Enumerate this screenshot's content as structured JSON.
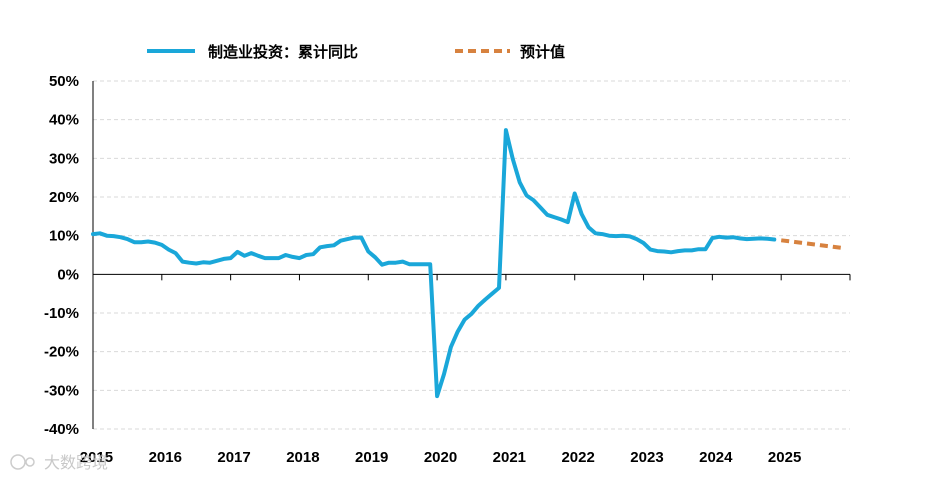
{
  "chart_data": {
    "type": "line",
    "title": "",
    "xlabel": "",
    "ylabel": "",
    "ylim": [
      -40,
      50
    ],
    "yticks": [
      -40,
      -30,
      -20,
      -10,
      0,
      10,
      20,
      30,
      40,
      50
    ],
    "ytick_labels": [
      "-40%",
      "-30%",
      "-20%",
      "-10%",
      "0%",
      "10%",
      "20%",
      "30%",
      "40%",
      "50%"
    ],
    "xlim": [
      2015.0,
      2026.0
    ],
    "xtick_labels": [
      "2015",
      "2016",
      "2017",
      "2018",
      "2019",
      "2020",
      "2021",
      "2022",
      "2023",
      "2024",
      "2025"
    ],
    "xtick_values": [
      2015,
      2016,
      2017,
      2018,
      2019,
      2020,
      2021,
      2022,
      2023,
      2024,
      2025
    ],
    "legend_position": "top",
    "grid": true,
    "series": [
      {
        "name": "制造业投资：累计同比",
        "style": "solid",
        "color": "#1aa7d9",
        "x": [
          2015.0,
          2015.1,
          2015.2,
          2015.3,
          2015.4,
          2015.5,
          2015.6,
          2015.7,
          2015.8,
          2015.9,
          2016.0,
          2016.1,
          2016.2,
          2016.3,
          2016.4,
          2016.5,
          2016.6,
          2016.7,
          2016.8,
          2016.9,
          2017.0,
          2017.1,
          2017.2,
          2017.3,
          2017.4,
          2017.5,
          2017.6,
          2017.7,
          2017.8,
          2017.9,
          2018.0,
          2018.1,
          2018.2,
          2018.3,
          2018.4,
          2018.5,
          2018.6,
          2018.7,
          2018.8,
          2018.9,
          2019.0,
          2019.1,
          2019.2,
          2019.3,
          2019.4,
          2019.5,
          2019.6,
          2019.7,
          2019.8,
          2019.9,
          2020.0,
          2020.1,
          2020.2,
          2020.3,
          2020.4,
          2020.5,
          2020.6,
          2020.7,
          2020.8,
          2020.9,
          2021.0,
          2021.1,
          2021.2,
          2021.3,
          2021.4,
          2021.5,
          2021.6,
          2021.7,
          2021.8,
          2021.9,
          2022.0,
          2022.1,
          2022.2,
          2022.3,
          2022.4,
          2022.5,
          2022.6,
          2022.7,
          2022.8,
          2022.9,
          2023.0,
          2023.1,
          2023.2,
          2023.3,
          2023.4,
          2023.5,
          2023.6,
          2023.7,
          2023.8,
          2023.9,
          2024.0,
          2024.1,
          2024.2,
          2024.3,
          2024.4,
          2024.5,
          2024.6,
          2024.7,
          2024.8,
          2024.9
        ],
        "values": [
          10.4,
          10.6,
          10.0,
          9.9,
          9.6,
          9.1,
          8.3,
          8.3,
          8.5,
          8.2,
          7.6,
          6.4,
          5.5,
          3.3,
          3.0,
          2.8,
          3.1,
          3.0,
          3.5,
          4.0,
          4.2,
          5.8,
          4.8,
          5.5,
          4.8,
          4.2,
          4.2,
          4.2,
          5.0,
          4.5,
          4.2,
          5.0,
          5.2,
          7.0,
          7.3,
          7.5,
          8.7,
          9.1,
          9.5,
          9.5,
          5.9,
          4.4,
          2.5,
          3.0,
          3.0,
          3.3,
          2.6,
          2.6,
          2.6,
          2.6,
          -31.5,
          -25.8,
          -18.8,
          -14.8,
          -11.7,
          -10.2,
          -8.1,
          -6.5,
          -5.0,
          -3.5,
          37.3,
          29.8,
          23.8,
          20.4,
          19.2,
          17.3,
          15.4,
          14.8,
          14.2,
          13.5,
          20.9,
          15.6,
          12.2,
          10.6,
          10.4,
          10.0,
          9.9,
          10.0,
          9.8,
          9.1,
          8.1,
          6.4,
          6.0,
          5.9,
          5.7,
          6.0,
          6.2,
          6.2,
          6.5,
          6.5,
          9.4,
          9.7,
          9.5,
          9.6,
          9.3,
          9.1,
          9.2,
          9.3,
          9.2,
          9.0
        ],
        "legend": "制造业投资：累计同比"
      },
      {
        "name": "预计值",
        "style": "dashed",
        "color": "#d7823f",
        "x": [
          2025.0,
          2025.9
        ],
        "values": [
          8.8,
          6.8
        ],
        "legend": "预计值"
      }
    ]
  },
  "watermark": "大数跨境"
}
